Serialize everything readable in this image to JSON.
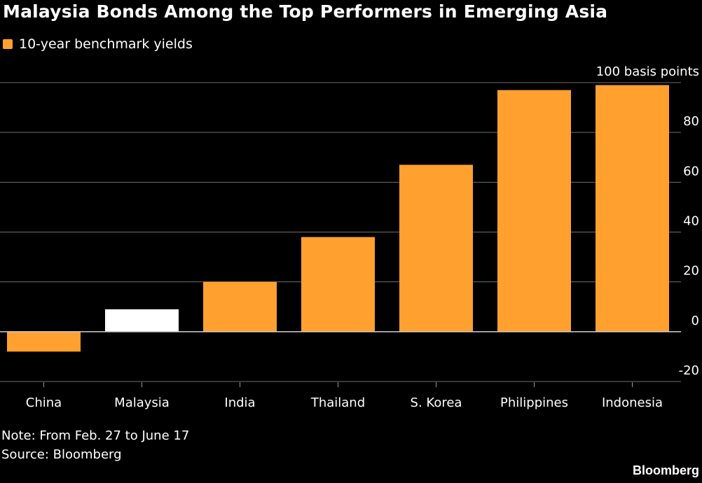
{
  "header": {
    "title": "Malaysia Bonds Among the Top Performers in Emerging Asia"
  },
  "legend": {
    "label": "10-year benchmark yields",
    "color": "#ffa02f"
  },
  "footer": {
    "note": "Note: From Feb. 27 to June 17",
    "source": "Source: Bloomberg",
    "brand": "Bloomberg"
  },
  "chart_data": {
    "type": "bar",
    "categories": [
      "China",
      "Malaysia",
      "India",
      "Thailand",
      "S. Korea",
      "Philippines",
      "Indonesia"
    ],
    "series": [
      {
        "values": [
          -8,
          9,
          20,
          38,
          67,
          97,
          99
        ]
      }
    ],
    "highlight_category": "Malaysia",
    "colors": {
      "bar": "#ffa02f",
      "highlight": "#ffffff",
      "grid": "#6e6e6e",
      "zero_line": "#d0d0d0"
    },
    "ylim": [
      -20,
      100
    ],
    "yticks": [
      100,
      80,
      60,
      40,
      20,
      0,
      -20
    ],
    "ytick_labels": [
      "100 basis points",
      "80",
      "60",
      "40",
      "20",
      "0",
      "-20"
    ],
    "axis_position": "right",
    "grid": true,
    "legend_position": "top-left"
  }
}
